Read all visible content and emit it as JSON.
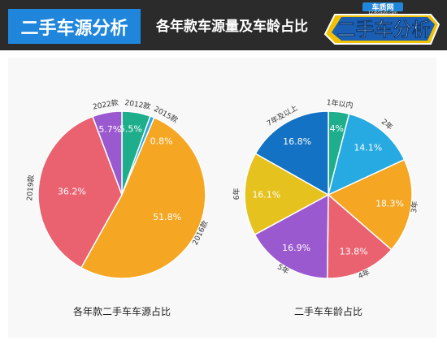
{
  "header": {
    "title": "二手车源分析",
    "subtitle": "各年款车源量及车龄占比",
    "logo": {
      "site_name": "车质网",
      "site_url": "12365auto.com",
      "tagline": "二手车分析"
    }
  },
  "colors": {
    "header_bg": "#2b2b2b",
    "title_bg": "#1f86dc",
    "panel_bg": "#f8f8f8"
  },
  "chart_data": [
    {
      "type": "pie",
      "caption": "各年款二手车车源占比",
      "slices": [
        {
          "label": "2012款",
          "value": 5.5,
          "value_label": "5.5%",
          "color": "#1fae8c"
        },
        {
          "label": "2015款",
          "value": 0.8,
          "value_label": "0.8%",
          "color": "#27a9e1"
        },
        {
          "label": "2016款",
          "value": 51.8,
          "value_label": "51.8%",
          "color": "#f5a623"
        },
        {
          "label": "2019款",
          "value": 36.2,
          "value_label": "36.2%",
          "color": "#ea6270"
        },
        {
          "label": "2022款",
          "value": 5.7,
          "value_label": "5.7%",
          "color": "#9b59d0"
        }
      ]
    },
    {
      "type": "pie",
      "caption": "二手车车龄占比",
      "slices": [
        {
          "label": "1年以内",
          "value": 4,
          "value_label": "4%",
          "color": "#1fae8c"
        },
        {
          "label": "2年",
          "value": 14.1,
          "value_label": "14.1%",
          "color": "#27a9e1"
        },
        {
          "label": "3年",
          "value": 18.3,
          "value_label": "18.3%",
          "color": "#f5a623"
        },
        {
          "label": "4年",
          "value": 13.8,
          "value_label": "13.8%",
          "color": "#ea6270"
        },
        {
          "label": "5年",
          "value": 16.9,
          "value_label": "16.9%",
          "color": "#9b59d0"
        },
        {
          "label": "6年",
          "value": 16.1,
          "value_label": "16.1%",
          "color": "#e6c21e"
        },
        {
          "label": "7年及以上",
          "value": 16.8,
          "value_label": "16.8%",
          "color": "#1372c4"
        }
      ]
    }
  ]
}
